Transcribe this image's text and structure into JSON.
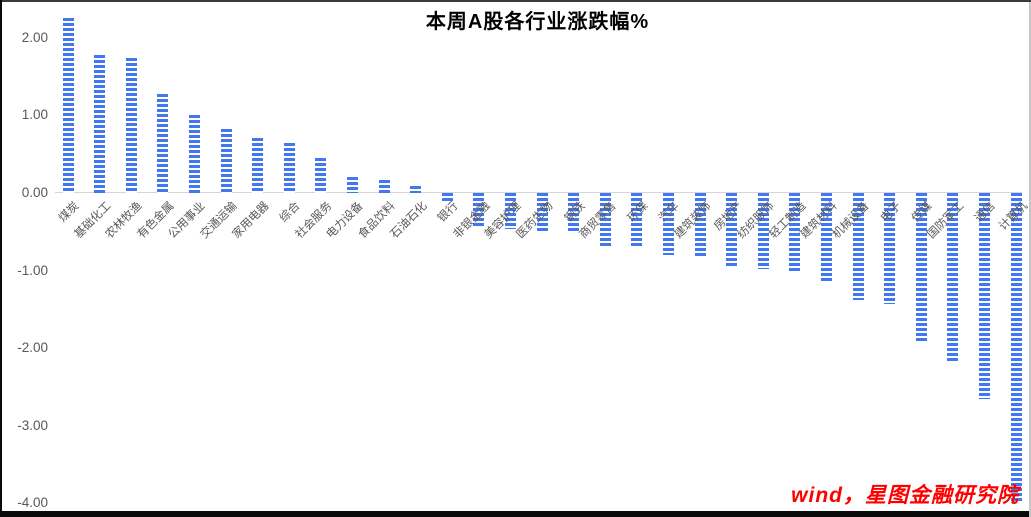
{
  "chart_data": {
    "type": "bar",
    "title": "本周A股各行业涨跌幅%",
    "categories": [
      "煤炭",
      "基础化工",
      "农林牧渔",
      "有色金属",
      "公用事业",
      "交通运输",
      "家用电器",
      "综合",
      "社会服务",
      "电力设备",
      "食品饮料",
      "石油石化",
      "银行",
      "非银金融",
      "美容护理",
      "医药生物",
      "钢铁",
      "商贸零售",
      "环保",
      "汽车",
      "建筑装饰",
      "房地产",
      "纺织服饰",
      "轻工制造",
      "建筑材料",
      "机械设备",
      "电子",
      "传媒",
      "国防军工",
      "通信",
      "计算机"
    ],
    "values": [
      2.26,
      1.78,
      1.74,
      1.27,
      1.01,
      0.82,
      0.71,
      0.65,
      0.45,
      0.21,
      0.17,
      0.09,
      -0.13,
      -0.45,
      -0.47,
      -0.5,
      -0.5,
      -0.69,
      -0.7,
      -0.8,
      -0.82,
      -0.95,
      -0.98,
      -1.0,
      -1.13,
      -1.38,
      -1.43,
      -1.93,
      -2.16,
      -2.66,
      -3.97
    ],
    "xlabel": "",
    "ylabel": "",
    "ylim": [
      -4.0,
      2.3
    ],
    "yticks": [
      2.0,
      1.0,
      0.0,
      -1.0,
      -2.0,
      -3.0,
      -4.0
    ],
    "ytick_labels": [
      "2.00",
      "1.00",
      "0.00",
      "-1.00",
      "-2.00",
      "-3.00",
      "-4.00"
    ],
    "grid": "zero-line-only",
    "legend": "none",
    "bar_color": "#4277f2",
    "bar_pattern": "horizontal-stripes",
    "label_rotation_deg": 45
  },
  "watermark": {
    "text": "wind，星图金融研究院",
    "color": "#ff0000"
  },
  "style": {
    "axis_text_color": "#595959",
    "zero_line_color": "#d6d6d6",
    "title_color": "#000000",
    "background": "#ffffff"
  }
}
